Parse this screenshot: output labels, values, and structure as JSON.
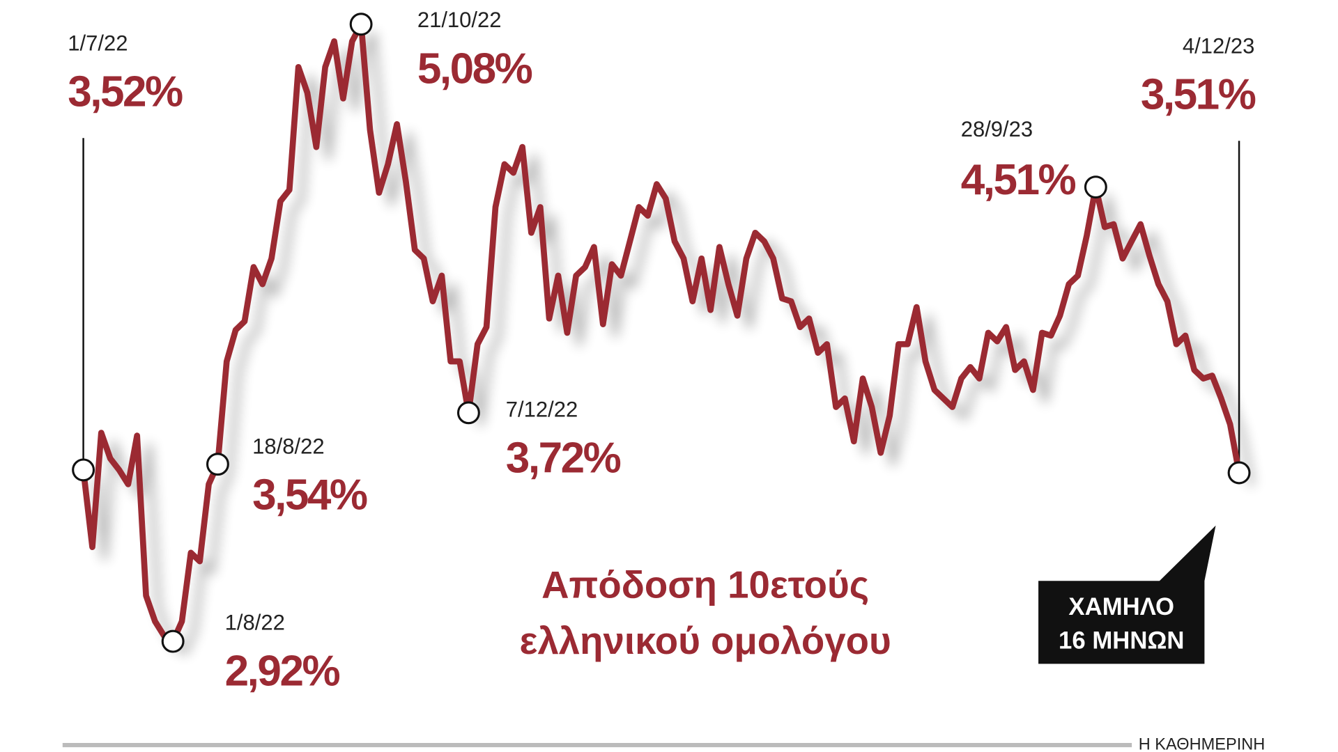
{
  "chart_data": {
    "type": "line",
    "title": [
      "Απόδοση 10ετούς",
      "ελληνικού ομολόγου"
    ],
    "callout": [
      "ΧΑΜΗΛΟ",
      "16 ΜΗΝΩΝ"
    ],
    "source": "Η ΚΑΘΗΜΕΡΙΝΗ",
    "categories": [
      "1/7/22",
      null,
      null,
      null,
      null,
      null,
      null,
      null,
      null,
      null,
      "1/8/22",
      null,
      null,
      null,
      null,
      "18/8/22",
      null,
      null,
      null,
      null,
      null,
      null,
      null,
      null,
      null,
      null,
      null,
      null,
      null,
      null,
      null,
      "21/10/22",
      null,
      null,
      null,
      null,
      null,
      null,
      null,
      null,
      null,
      null,
      null,
      "7/12/22",
      null,
      null,
      null,
      null,
      null,
      null,
      null,
      null,
      null,
      null,
      null,
      null,
      null,
      null,
      null,
      null,
      null,
      null,
      null,
      null,
      null,
      null,
      null,
      null,
      null,
      null,
      null,
      null,
      null,
      null,
      null,
      null,
      null,
      null,
      null,
      null,
      null,
      null,
      null,
      null,
      null,
      null,
      null,
      null,
      null,
      null,
      null,
      null,
      null,
      null,
      null,
      null,
      null,
      null,
      null,
      null,
      null,
      null,
      null,
      null,
      null,
      null,
      null,
      null,
      null,
      null,
      null,
      null,
      null,
      "28/9/23",
      null,
      null,
      null,
      null,
      null,
      null,
      null,
      null,
      null,
      null,
      null,
      null,
      null,
      null,
      null,
      "4/12/23"
    ],
    "series": [
      {
        "color": "#9b2a33",
        "values": [
          3.52,
          3.25,
          3.65,
          3.56,
          3.52,
          3.47,
          3.64,
          3.08,
          2.99,
          2.94,
          2.92,
          2.99,
          3.23,
          3.2,
          3.47,
          3.54,
          3.9,
          4.01,
          4.04,
          4.23,
          4.17,
          4.26,
          4.46,
          4.5,
          4.93,
          4.84,
          4.65,
          4.93,
          5.02,
          4.82,
          5.02,
          5.08,
          4.71,
          4.49,
          4.59,
          4.73,
          4.53,
          4.29,
          4.26,
          4.11,
          4.2,
          3.9,
          3.9,
          3.72,
          3.96,
          4.02,
          4.44,
          4.59,
          4.56,
          4.65,
          4.35,
          4.44,
          4.05,
          4.2,
          4.0,
          4.2,
          4.23,
          4.3,
          4.03,
          4.24,
          4.2,
          4.32,
          4.44,
          4.41,
          4.52,
          4.47,
          4.32,
          4.26,
          4.11,
          4.26,
          4.08,
          4.3,
          4.17,
          4.06,
          4.26,
          4.35,
          4.32,
          4.26,
          4.12,
          4.11,
          4.02,
          4.05,
          3.93,
          3.96,
          3.74,
          3.77,
          3.62,
          3.84,
          3.74,
          3.58,
          3.71,
          3.96,
          3.96,
          4.09,
          3.9,
          3.8,
          3.77,
          3.74,
          3.84,
          3.88,
          3.84,
          4.0,
          3.97,
          4.02,
          3.87,
          3.9,
          3.8,
          4.0,
          3.99,
          4.06,
          4.17,
          4.2,
          4.34,
          4.51,
          4.37,
          4.38,
          4.26,
          4.32,
          4.38,
          4.27,
          4.17,
          4.11,
          3.96,
          3.99,
          3.87,
          3.84,
          3.85,
          3.77,
          3.68,
          3.51
        ],
        "value_labels": [
          "3,52%",
          null,
          null,
          null,
          null,
          null,
          null,
          null,
          null,
          null,
          "2,92%",
          null,
          null,
          null,
          null,
          "3,54%",
          null,
          null,
          null,
          null,
          null,
          null,
          null,
          null,
          null,
          null,
          null,
          null,
          null,
          null,
          null,
          "5,08%",
          null,
          null,
          null,
          null,
          null,
          null,
          null,
          null,
          null,
          null,
          null,
          "3,72%",
          null,
          null,
          null,
          null,
          null,
          null,
          null,
          null,
          null,
          null,
          null,
          null,
          null,
          null,
          null,
          null,
          null,
          null,
          null,
          null,
          null,
          null,
          null,
          null,
          null,
          null,
          null,
          null,
          null,
          null,
          null,
          null,
          null,
          null,
          null,
          null,
          null,
          null,
          null,
          null,
          null,
          null,
          null,
          null,
          null,
          null,
          null,
          null,
          null,
          null,
          null,
          null,
          null,
          null,
          null,
          null,
          null,
          null,
          null,
          null,
          null,
          null,
          null,
          null,
          null,
          null,
          null,
          null,
          null,
          "4,51%",
          null,
          null,
          null,
          null,
          null,
          null,
          null,
          null,
          null,
          null,
          null,
          null,
          null,
          null,
          null,
          "3,51%"
        ]
      }
    ]
  }
}
